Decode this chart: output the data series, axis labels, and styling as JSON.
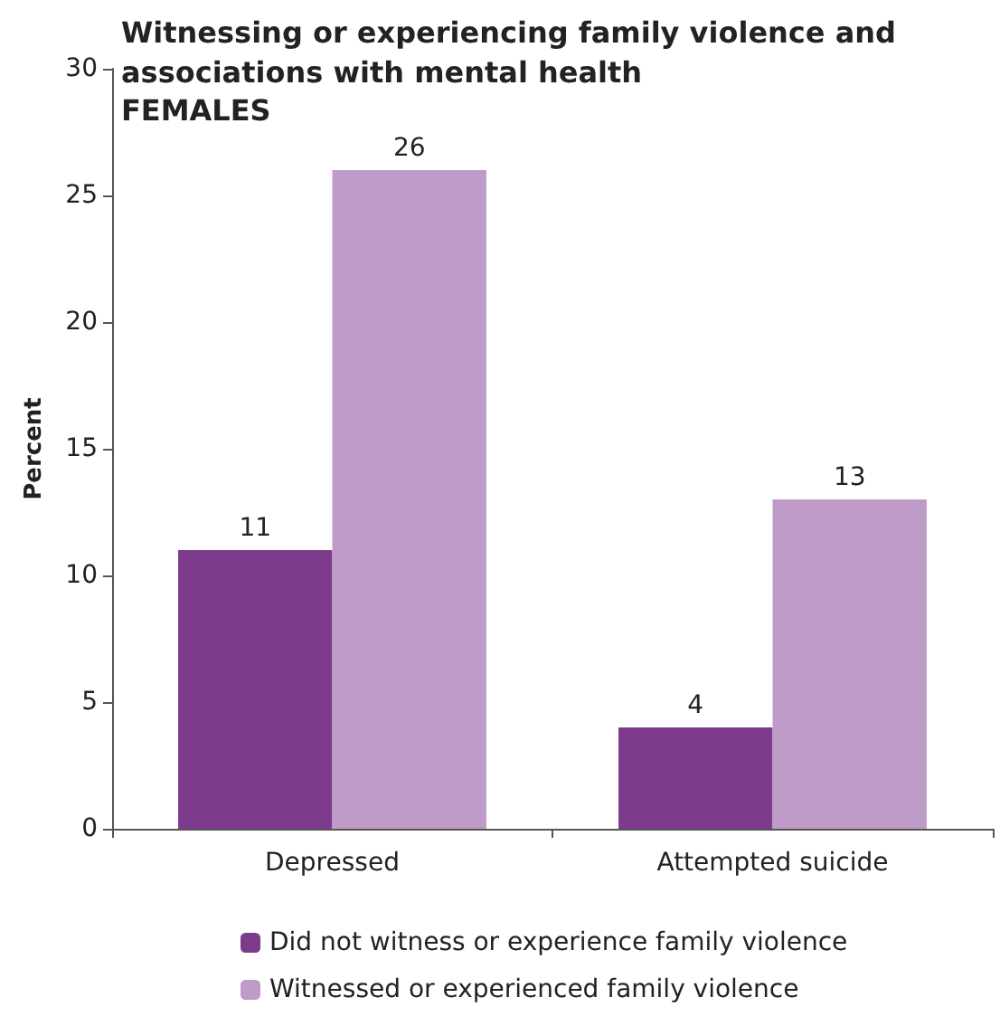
{
  "chart_data": {
    "type": "bar",
    "title": "Witnessing or experiencing family violence and associations with mental health",
    "subtitle": "FEMALES",
    "ylabel": "Percent",
    "categories": [
      "Depressed",
      "Attempted suicide"
    ],
    "series": [
      {
        "name": "Did not witness or experience family violence",
        "color": "#7d3b8c",
        "values": [
          11,
          4
        ]
      },
      {
        "name": "Witnessed or experienced family violence",
        "color": "#bf9bc8",
        "values": [
          26,
          13
        ]
      }
    ],
    "ylim": [
      0,
      30
    ],
    "yticks": [
      0,
      5,
      10,
      15,
      20,
      25,
      30
    ],
    "grid": false,
    "legend": "bottom",
    "data_labels": true
  }
}
